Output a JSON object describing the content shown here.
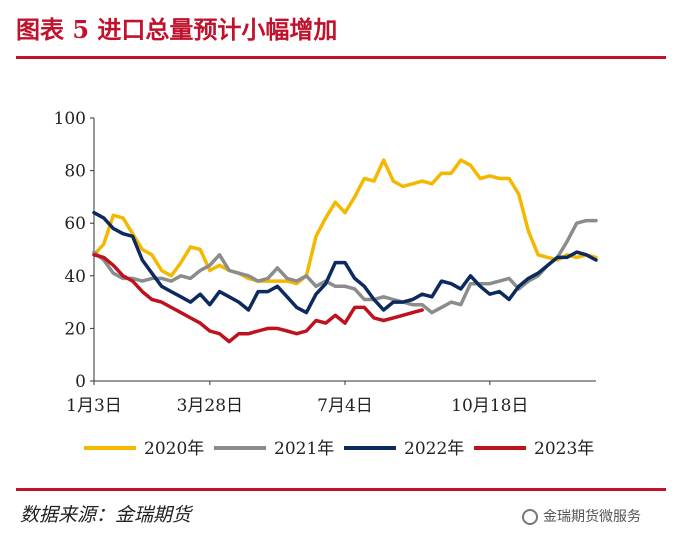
{
  "header": {
    "title": "图表 5 进口总量预计小幅增加"
  },
  "footer": {
    "source": "数据来源：金瑞期货",
    "watermark": "金瑞期货微服务"
  },
  "chart_data": {
    "type": "line",
    "title": "",
    "xlabel": "",
    "ylabel": "",
    "ylim": [
      0,
      100
    ],
    "yticks": [
      0,
      20,
      40,
      60,
      80,
      100
    ],
    "xticks": [
      {
        "week": 1,
        "label": "1月3日"
      },
      {
        "week": 13,
        "label": "3月28日"
      },
      {
        "week": 27,
        "label": "7月4日"
      },
      {
        "week": 42,
        "label": "10月18日"
      }
    ],
    "x_range_weeks": [
      1,
      53
    ],
    "legend_position": "bottom",
    "series": [
      {
        "name": "2020年",
        "color": "#f5b800",
        "points": [
          [
            1,
            48
          ],
          [
            2,
            52
          ],
          [
            3,
            63
          ],
          [
            4,
            62
          ],
          [
            5,
            56
          ],
          [
            6,
            50
          ],
          [
            7,
            48
          ],
          [
            8,
            42
          ],
          [
            9,
            40
          ],
          [
            10,
            45
          ],
          [
            11,
            51
          ],
          [
            12,
            50
          ],
          [
            13,
            42
          ],
          [
            14,
            44
          ],
          [
            15,
            42
          ],
          [
            16,
            41
          ],
          [
            17,
            39
          ],
          [
            18,
            38
          ],
          [
            19,
            38
          ],
          [
            20,
            38
          ],
          [
            21,
            38
          ],
          [
            22,
            37
          ],
          [
            23,
            40
          ],
          [
            24,
            55
          ],
          [
            25,
            62
          ],
          [
            26,
            68
          ],
          [
            27,
            64
          ],
          [
            28,
            70
          ],
          [
            29,
            77
          ],
          [
            30,
            76
          ],
          [
            31,
            84
          ],
          [
            32,
            76
          ],
          [
            33,
            74
          ],
          [
            34,
            75
          ],
          [
            35,
            76
          ],
          [
            36,
            75
          ],
          [
            37,
            79
          ],
          [
            38,
            79
          ],
          [
            39,
            84
          ],
          [
            40,
            82
          ],
          [
            41,
            77
          ],
          [
            42,
            78
          ],
          [
            43,
            77
          ],
          [
            44,
            77
          ],
          [
            45,
            71
          ],
          [
            46,
            57
          ],
          [
            47,
            48
          ],
          [
            48,
            47
          ],
          [
            49,
            46
          ],
          [
            50,
            48
          ],
          [
            51,
            47
          ],
          [
            52,
            48
          ],
          [
            53,
            47
          ]
        ]
      },
      {
        "name": "2021年",
        "color": "#8c8c8c",
        "points": [
          [
            1,
            49
          ],
          [
            2,
            46
          ],
          [
            3,
            41
          ],
          [
            4,
            39
          ],
          [
            5,
            39
          ],
          [
            6,
            38
          ],
          [
            7,
            39
          ],
          [
            8,
            39
          ],
          [
            9,
            38
          ],
          [
            10,
            40
          ],
          [
            11,
            39
          ],
          [
            12,
            42
          ],
          [
            13,
            44
          ],
          [
            14,
            48
          ],
          [
            15,
            42
          ],
          [
            16,
            41
          ],
          [
            17,
            40
          ],
          [
            18,
            38
          ],
          [
            19,
            39
          ],
          [
            20,
            43
          ],
          [
            21,
            39
          ],
          [
            22,
            38
          ],
          [
            23,
            40
          ],
          [
            24,
            36
          ],
          [
            25,
            38
          ],
          [
            26,
            36
          ],
          [
            27,
            36
          ],
          [
            28,
            35
          ],
          [
            29,
            31
          ],
          [
            30,
            31
          ],
          [
            31,
            32
          ],
          [
            32,
            31
          ],
          [
            33,
            30
          ],
          [
            34,
            29
          ],
          [
            35,
            29
          ],
          [
            36,
            26
          ],
          [
            37,
            28
          ],
          [
            38,
            30
          ],
          [
            39,
            29
          ],
          [
            40,
            37
          ],
          [
            41,
            37
          ],
          [
            42,
            37
          ],
          [
            43,
            38
          ],
          [
            44,
            39
          ],
          [
            45,
            35
          ],
          [
            46,
            38
          ],
          [
            47,
            40
          ],
          [
            48,
            44
          ],
          [
            49,
            47
          ],
          [
            50,
            53
          ],
          [
            51,
            60
          ],
          [
            52,
            61
          ],
          [
            53,
            61
          ]
        ]
      },
      {
        "name": "2022年",
        "color": "#0d2a5e",
        "points": [
          [
            1,
            64
          ],
          [
            2,
            62
          ],
          [
            3,
            58
          ],
          [
            4,
            56
          ],
          [
            5,
            55
          ],
          [
            6,
            46
          ],
          [
            7,
            41
          ],
          [
            8,
            36
          ],
          [
            9,
            34
          ],
          [
            10,
            32
          ],
          [
            11,
            30
          ],
          [
            12,
            33
          ],
          [
            13,
            29
          ],
          [
            14,
            34
          ],
          [
            15,
            32
          ],
          [
            16,
            30
          ],
          [
            17,
            27
          ],
          [
            18,
            34
          ],
          [
            19,
            34
          ],
          [
            20,
            36
          ],
          [
            21,
            32
          ],
          [
            22,
            28
          ],
          [
            23,
            26
          ],
          [
            24,
            33
          ],
          [
            25,
            37
          ],
          [
            26,
            45
          ],
          [
            27,
            45
          ],
          [
            28,
            39
          ],
          [
            29,
            36
          ],
          [
            30,
            31
          ],
          [
            31,
            27
          ],
          [
            32,
            30
          ],
          [
            33,
            30
          ],
          [
            34,
            31
          ],
          [
            35,
            33
          ],
          [
            36,
            32
          ],
          [
            37,
            38
          ],
          [
            38,
            37
          ],
          [
            39,
            35
          ],
          [
            40,
            40
          ],
          [
            41,
            36
          ],
          [
            42,
            33
          ],
          [
            43,
            34
          ],
          [
            44,
            31
          ],
          [
            45,
            36
          ],
          [
            46,
            39
          ],
          [
            47,
            41
          ],
          [
            48,
            44
          ],
          [
            49,
            47
          ],
          [
            50,
            47
          ],
          [
            51,
            49
          ],
          [
            52,
            48
          ],
          [
            53,
            46
          ]
        ]
      },
      {
        "name": "2023年",
        "color": "#c0111f",
        "points": [
          [
            1,
            48
          ],
          [
            2,
            47
          ],
          [
            3,
            44
          ],
          [
            4,
            40
          ],
          [
            5,
            38
          ],
          [
            6,
            34
          ],
          [
            7,
            31
          ],
          [
            8,
            30
          ],
          [
            9,
            28
          ],
          [
            10,
            26
          ],
          [
            11,
            24
          ],
          [
            12,
            22
          ],
          [
            13,
            19
          ],
          [
            14,
            18
          ],
          [
            15,
            15
          ],
          [
            16,
            18
          ],
          [
            17,
            18
          ],
          [
            18,
            19
          ],
          [
            19,
            20
          ],
          [
            20,
            20
          ],
          [
            21,
            19
          ],
          [
            22,
            18
          ],
          [
            23,
            19
          ],
          [
            24,
            23
          ],
          [
            25,
            22
          ],
          [
            26,
            25
          ],
          [
            27,
            22
          ],
          [
            28,
            28
          ],
          [
            29,
            28
          ],
          [
            30,
            24
          ],
          [
            31,
            23
          ],
          [
            32,
            24
          ],
          [
            33,
            25
          ],
          [
            34,
            26
          ],
          [
            35,
            27
          ]
        ]
      }
    ]
  }
}
